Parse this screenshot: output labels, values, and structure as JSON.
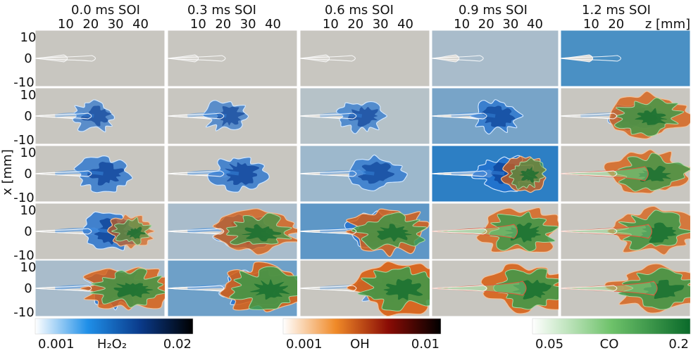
{
  "chart_data": {
    "type": "heatmap",
    "columns": [
      "0.0 ms SOI",
      "0.3 ms SOI",
      "0.6 ms SOI",
      "0.9 ms SOI",
      "1.2 ms SOI"
    ],
    "z_ticks": [
      "10",
      "20",
      "30",
      "40"
    ],
    "z_ticks_last_column": [
      "10",
      "20"
    ],
    "z_axis_label": "z [mm]",
    "x_ticks": [
      "10",
      "0",
      "-10"
    ],
    "x_axis_label": "x [mm]",
    "rows": 5,
    "colorbars": [
      {
        "species": "H₂O₂",
        "min_label": "0.001",
        "max_label": "0.02",
        "colors": [
          "#ffffff",
          "#1f8fe8",
          "#0a3a8a",
          "#000000"
        ]
      },
      {
        "species": "OH",
        "min_label": "0.001",
        "max_label": "0.01",
        "colors": [
          "#ffffff",
          "#f08a28",
          "#8a0c05",
          "#000000"
        ]
      },
      {
        "species": "CO",
        "min_label": "0.05",
        "max_label": "0.2",
        "colors": [
          "#ffffff",
          "#6ec26a",
          "#0a6a2a"
        ]
      }
    ],
    "panel_backgrounds": [
      [
        "#c8c6c0",
        "#c8c6c0",
        "#c8c6c0",
        "#a9bccb",
        "#4a90c4"
      ],
      [
        "#c8c6c0",
        "#c8c6c0",
        "#b6c2c8",
        "#78a4c8",
        "#c8c6c0"
      ],
      [
        "#c8c6c0",
        "#c8c6c0",
        "#9db8cc",
        "#2d7fc4",
        "#c8c6c0"
      ],
      [
        "#c8c6c0",
        "#a9bccb",
        "#5e97c6",
        "#c8c6c0",
        "#c8c6c0"
      ],
      [
        "#a9bccb",
        "#6ea0c8",
        "#c8c6c0",
        "#c8c6c0",
        "#c8c6c0"
      ]
    ],
    "spray_length_mm": [
      [
        25,
        24,
        23,
        22,
        25
      ],
      [
        38,
        38,
        40,
        42,
        48
      ],
      [
        44,
        46,
        48,
        48,
        50
      ],
      [
        48,
        50,
        50,
        50,
        52
      ],
      [
        52,
        55,
        55,
        55,
        55
      ]
    ],
    "h2o2_level": [
      [
        0,
        0,
        0,
        0,
        0
      ],
      [
        0.6,
        0.6,
        0.6,
        0.7,
        0.5
      ],
      [
        0.8,
        0.8,
        0.7,
        0.8,
        0
      ],
      [
        0.9,
        0.9,
        0.9,
        0,
        0
      ],
      [
        0.9,
        0.9,
        0.5,
        0,
        0
      ]
    ],
    "oh_level": [
      [
        0,
        0,
        0,
        0,
        0
      ],
      [
        0,
        0,
        0,
        0,
        0.6
      ],
      [
        0,
        0,
        0,
        0.5,
        0.6
      ],
      [
        0.3,
        0.6,
        0.7,
        0.6,
        0.5
      ],
      [
        0.7,
        0.8,
        0.9,
        0.8,
        0.6
      ]
    ],
    "co_level": [
      [
        0,
        0,
        0,
        0,
        0
      ],
      [
        0,
        0,
        0,
        0,
        0.7
      ],
      [
        0,
        0,
        0,
        0.3,
        0.7
      ],
      [
        0.3,
        0.6,
        0.7,
        0.8,
        0.8
      ],
      [
        0.7,
        0.8,
        0.8,
        0.8,
        0.8
      ]
    ]
  }
}
